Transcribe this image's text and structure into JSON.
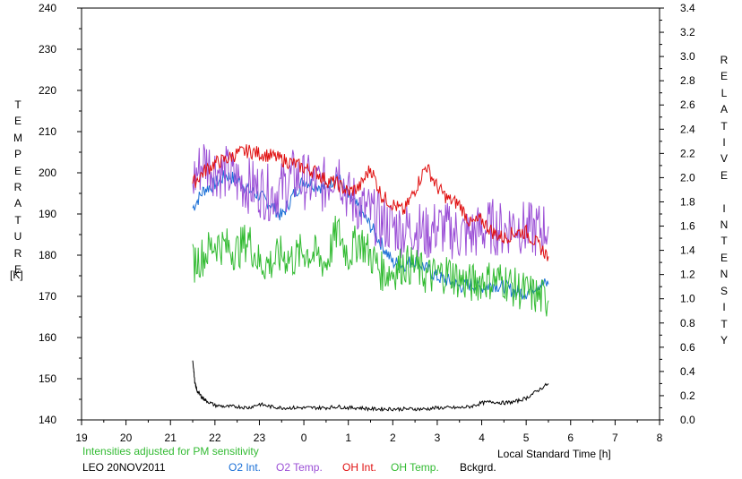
{
  "chart_data": {
    "type": "line",
    "left_axis_label": "TEMPERATURE",
    "left_axis_unit": "[K]",
    "right_axis_label": "RELATIVE INTENSITY",
    "xlabel": "Local Standard Time [h]",
    "note": "Intensities adjusted for PM sensitivity",
    "station_date": "LEO 20NOV2011",
    "xlim": [
      19,
      32
    ],
    "x_tick_labels": [
      "19",
      "20",
      "21",
      "22",
      "23",
      "0",
      "1",
      "2",
      "3",
      "4",
      "5",
      "6",
      "7",
      "8"
    ],
    "ylim_left": [
      140,
      240
    ],
    "y_left_ticks": [
      140,
      150,
      160,
      170,
      180,
      190,
      200,
      210,
      220,
      230,
      240
    ],
    "ylim_right": [
      0.0,
      3.4
    ],
    "y_right_ticks": [
      "0.0",
      "0.2",
      "0.4",
      "0.6",
      "0.8",
      "1.0",
      "1.2",
      "1.4",
      "1.6",
      "1.8",
      "2.0",
      "2.2",
      "2.4",
      "2.6",
      "2.8",
      "3.0",
      "3.2",
      "3.4"
    ],
    "grid": false,
    "legend": "bottom",
    "series": [
      {
        "name": "O2 Int.",
        "axis": "right",
        "color": "#1a6fd6",
        "x": [
          21.5,
          21.75,
          22.0,
          22.25,
          22.5,
          22.75,
          23.0,
          23.25,
          23.5,
          23.75,
          24.0,
          24.25,
          24.5,
          24.75,
          25.0,
          25.25,
          25.5,
          25.75,
          26.0,
          26.25,
          26.5,
          26.75,
          27.0,
          27.25,
          27.5,
          27.75,
          28.0,
          28.25,
          28.5,
          28.75,
          29.0,
          29.25,
          29.5
        ],
        "y": [
          1.75,
          1.9,
          1.95,
          2.02,
          1.98,
          1.9,
          1.85,
          1.78,
          1.68,
          1.85,
          1.98,
          1.94,
          1.92,
          2.02,
          1.84,
          1.74,
          1.6,
          1.45,
          1.3,
          1.28,
          1.32,
          1.25,
          1.18,
          1.15,
          1.1,
          1.12,
          1.09,
          1.12,
          1.1,
          1.06,
          1.05,
          1.12,
          1.12
        ]
      },
      {
        "name": "O2 Temp.",
        "axis": "left",
        "color": "#9b4fd6",
        "x": [
          21.5,
          21.75,
          22.0,
          22.25,
          22.5,
          22.75,
          23.0,
          23.25,
          23.5,
          23.75,
          24.0,
          24.25,
          24.5,
          24.75,
          25.0,
          25.25,
          25.5,
          25.75,
          26.0,
          26.25,
          26.5,
          26.75,
          27.0,
          27.25,
          27.5,
          27.75,
          28.0,
          28.25,
          28.5,
          28.75,
          29.0,
          29.25,
          29.5
        ],
        "y": [
          198,
          203,
          201,
          200,
          198,
          197,
          196,
          195,
          196,
          199,
          198,
          197,
          197,
          202,
          194,
          192,
          190,
          188,
          187,
          186,
          187,
          185,
          187,
          186,
          185,
          185,
          186,
          187,
          186,
          188,
          186,
          186,
          187
        ]
      },
      {
        "name": "OH Int.",
        "axis": "right",
        "color": "#e01010",
        "x": [
          21.5,
          21.75,
          22.0,
          22.25,
          22.5,
          22.75,
          23.0,
          23.25,
          23.5,
          23.75,
          24.0,
          24.25,
          24.5,
          24.75,
          25.0,
          25.25,
          25.5,
          25.75,
          26.0,
          26.25,
          26.5,
          26.75,
          27.0,
          27.25,
          27.5,
          27.75,
          28.0,
          28.25,
          28.5,
          28.75,
          29.0,
          29.25,
          29.5
        ],
        "y": [
          1.95,
          2.05,
          2.12,
          2.15,
          2.2,
          2.22,
          2.2,
          2.18,
          2.15,
          2.12,
          2.08,
          2.05,
          1.98,
          1.95,
          1.88,
          1.92,
          2.08,
          1.85,
          1.78,
          1.72,
          1.9,
          2.1,
          1.92,
          1.82,
          1.78,
          1.62,
          1.65,
          1.55,
          1.5,
          1.55,
          1.55,
          1.45,
          1.35
        ]
      },
      {
        "name": "OH Temp.",
        "axis": "left",
        "color": "#33bb33",
        "x": [
          21.5,
          21.75,
          22.0,
          22.25,
          22.5,
          22.75,
          23.0,
          23.25,
          23.5,
          23.75,
          24.0,
          24.25,
          24.5,
          24.75,
          25.0,
          25.25,
          25.5,
          25.75,
          26.0,
          26.25,
          26.5,
          26.75,
          27.0,
          27.25,
          27.5,
          27.75,
          28.0,
          28.25,
          28.5,
          28.75,
          29.0,
          29.25,
          29.5
        ],
        "y": [
          178,
          180,
          183,
          182,
          181,
          184,
          178,
          178,
          180,
          179,
          181,
          180,
          178,
          186,
          180,
          184,
          180,
          176,
          176,
          178,
          177,
          175,
          175,
          176,
          174,
          173,
          174,
          174,
          174,
          172,
          171,
          170,
          169
        ]
      },
      {
        "name": "Bckgrd.",
        "axis": "right",
        "color": "#000000",
        "x": [
          21.5,
          21.55,
          21.6,
          21.7,
          21.8,
          22.0,
          22.25,
          22.5,
          22.75,
          23.0,
          23.25,
          23.5,
          23.75,
          24.0,
          24.25,
          24.5,
          24.75,
          25.0,
          25.25,
          25.5,
          25.75,
          26.0,
          26.25,
          26.5,
          26.75,
          27.0,
          27.25,
          27.5,
          27.75,
          28.0,
          28.25,
          28.5,
          28.75,
          29.0,
          29.25,
          29.5
        ],
        "y": [
          0.5,
          0.3,
          0.24,
          0.19,
          0.16,
          0.12,
          0.11,
          0.11,
          0.1,
          0.13,
          0.11,
          0.1,
          0.1,
          0.1,
          0.1,
          0.1,
          0.11,
          0.1,
          0.1,
          0.09,
          0.09,
          0.09,
          0.09,
          0.09,
          0.09,
          0.1,
          0.1,
          0.1,
          0.11,
          0.14,
          0.15,
          0.14,
          0.15,
          0.18,
          0.24,
          0.3
        ]
      }
    ]
  }
}
